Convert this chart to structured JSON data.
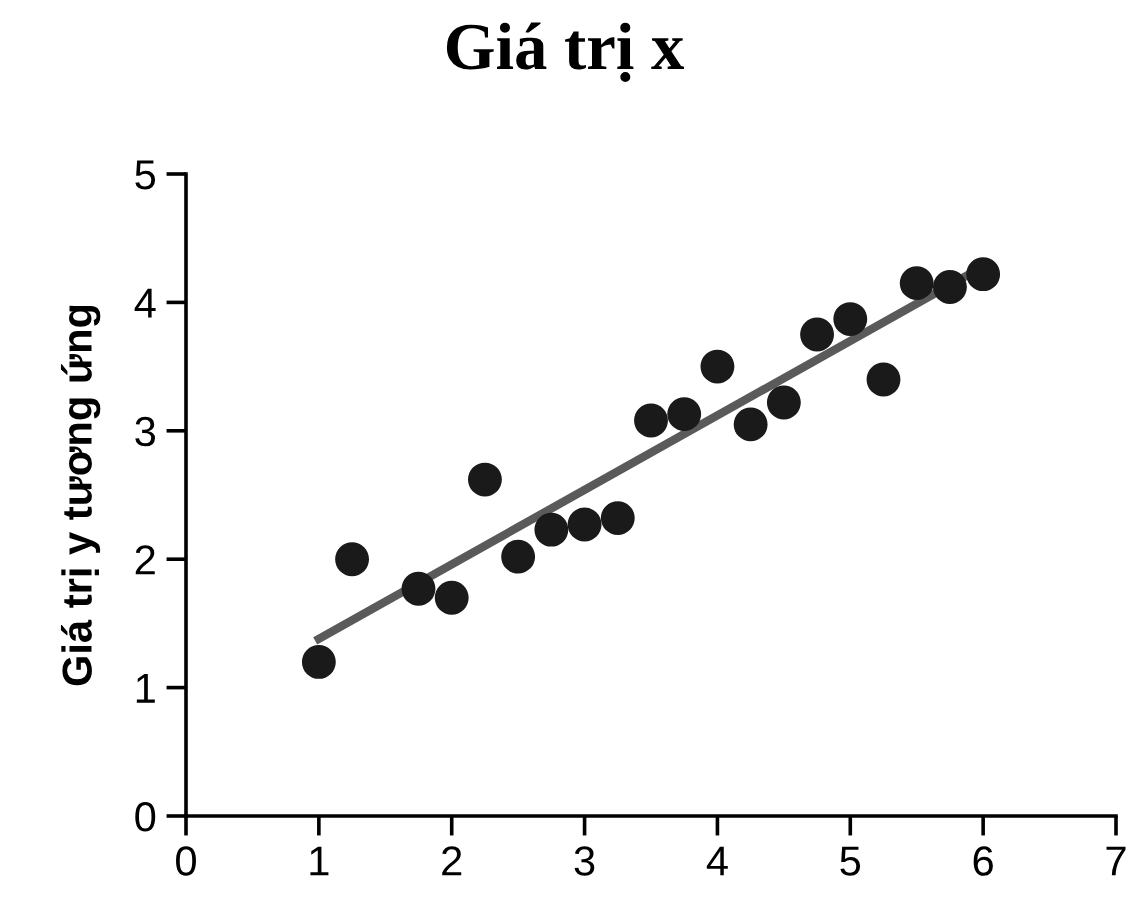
{
  "chart_data": {
    "type": "scatter",
    "title": "Giá trị x",
    "ylabel": "Giá trị y tương ứng",
    "xlim": [
      0,
      7
    ],
    "ylim": [
      0,
      5
    ],
    "xticks": [
      0,
      1,
      2,
      3,
      4,
      5,
      6,
      7
    ],
    "yticks": [
      0,
      1,
      2,
      3,
      4,
      5
    ],
    "grid": false,
    "series": [
      {
        "marker": "circle",
        "color": "#1a1a1a",
        "x": [
          1,
          1.25,
          1.75,
          2,
          2.25,
          2.5,
          2.75,
          3,
          3.25,
          3.5,
          3.75,
          4,
          4.25,
          4.5,
          4.75,
          5,
          5.25,
          5.5,
          5.75,
          6
        ],
        "values": [
          1.2,
          2.0,
          1.77,
          1.7,
          2.62,
          2.02,
          2.23,
          2.27,
          2.32,
          3.08,
          3.13,
          3.5,
          3.05,
          3.22,
          3.75,
          3.87,
          3.4,
          4.15,
          4.12,
          4.22
        ]
      },
      {
        "type": "line",
        "color": "#5a5a5a",
        "x": [
          1,
          6
        ],
        "values": [
          1.38,
          4.28
        ]
      }
    ]
  }
}
